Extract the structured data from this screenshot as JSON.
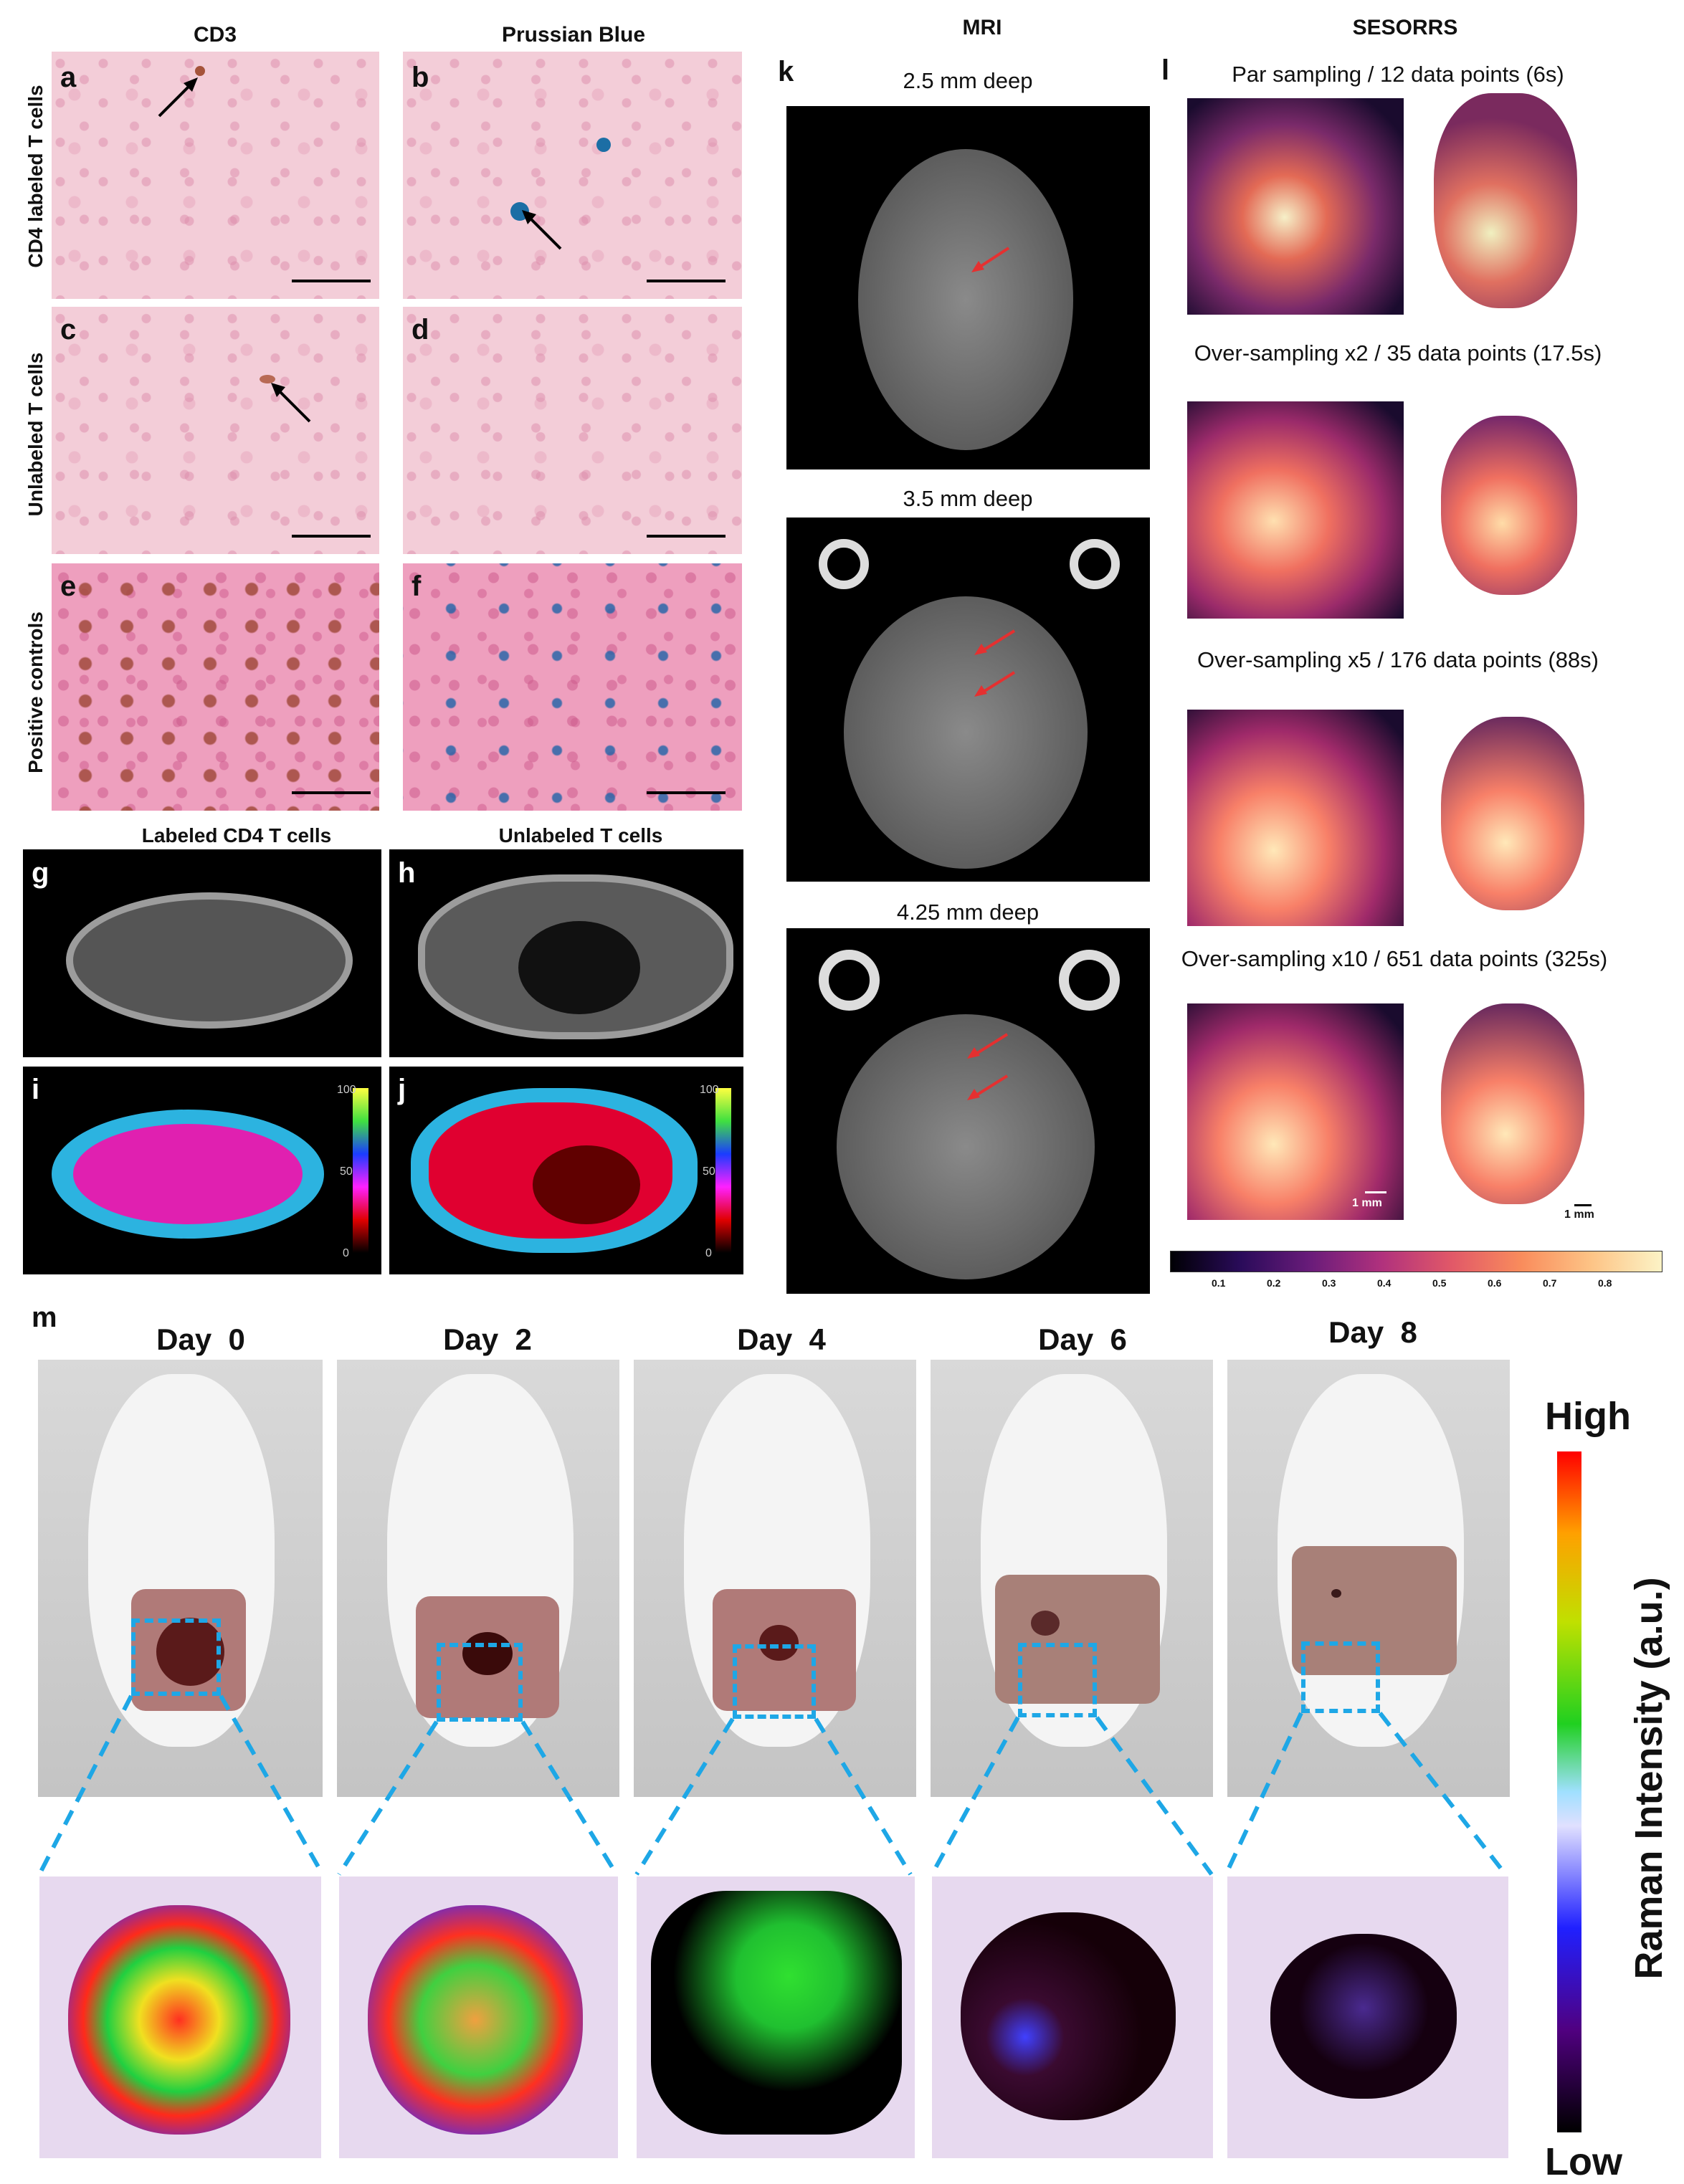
{
  "headers": {
    "cd3": "CD3",
    "prussian_blue": "Prussian Blue",
    "mri": "MRI",
    "sesorrs": "SESORRS"
  },
  "row_labels": {
    "cd4_labeled": "CD4 labeled T cells",
    "unlabeled": "Unlabeled T cells",
    "positive_controls": "Positive controls"
  },
  "panel_letters": [
    "a",
    "b",
    "c",
    "d",
    "e",
    "f",
    "g",
    "h",
    "i",
    "j",
    "k",
    "l",
    "m"
  ],
  "gh_titles": {
    "g": "Labeled CD4 T cells",
    "h": "Unlabeled T cells"
  },
  "ij_colorbar_ticks": [
    "100",
    "50",
    "0"
  ],
  "mri_depths": [
    "2.5 mm deep",
    "3.5 mm deep",
    "4.25 mm deep"
  ],
  "sesorrs_captions": [
    "Par sampling / 12 data points (6s)",
    "Over-sampling x2 / 35 data points (17.5s)",
    "Over-sampling x5 / 176 data points (88s)",
    "Over-sampling x10 / 651 data points (325s)"
  ],
  "scale_labels": [
    "1 mm",
    "1 mm"
  ],
  "sesorrs_colorbar_ticks": [
    "0.1",
    "0.2",
    "0.3",
    "0.4",
    "0.5",
    "0.6",
    "0.7",
    "0.8"
  ],
  "days": [
    "Day  0",
    "Day  2",
    "Day  4",
    "Day  6",
    "Day  8"
  ],
  "raman_colorbar": {
    "high": "High",
    "low": "Low",
    "title": "Raman Intensity (a.u.)"
  },
  "colors": {
    "dash_blue": "#1ea7e6",
    "arrow_red": "#e53030",
    "histo_pink": "#f3cdd8"
  }
}
